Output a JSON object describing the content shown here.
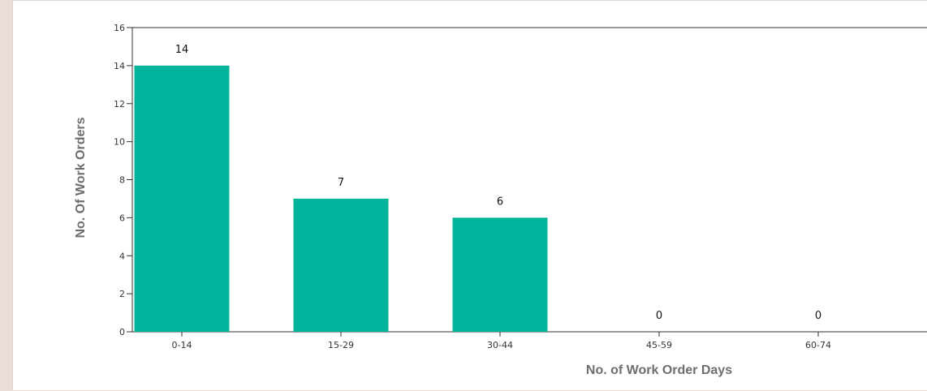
{
  "chart_data": {
    "type": "bar",
    "categories": [
      "0-14",
      "15-29",
      "30-44",
      "45-59",
      "60-74"
    ],
    "values": [
      14,
      7,
      6,
      0,
      0
    ],
    "data_labels": [
      "14",
      "7",
      "6",
      "0",
      "0"
    ],
    "title": "",
    "xlabel": "No. of Work Order Days",
    "ylabel": "No. Of Work Orders",
    "ylim": [
      0,
      16
    ],
    "yticks": [
      "0",
      "2",
      "4",
      "6",
      "8",
      "10",
      "12",
      "14",
      "16"
    ],
    "grid": false,
    "legend": "none",
    "bar_color": "#00b39b"
  }
}
